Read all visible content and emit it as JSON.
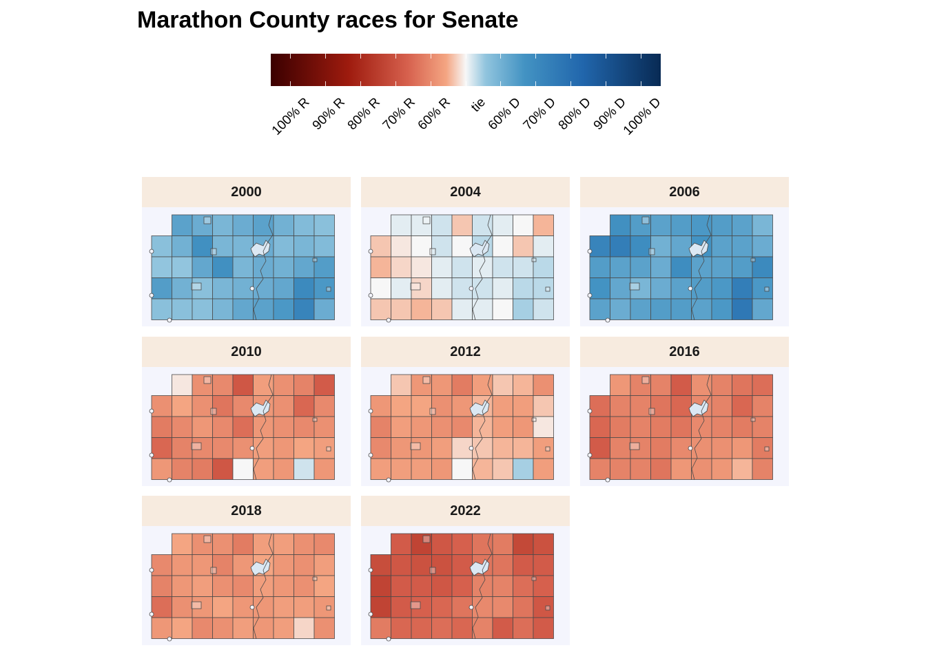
{
  "chart_data": {
    "type": "heatmap",
    "title": "Marathon County races for Senate",
    "legend": {
      "position": "top",
      "labels": [
        "100% R",
        "90% R",
        "80% R",
        "70% R",
        "60% R",
        "tie",
        "60% D",
        "70% D",
        "80% D",
        "90% D",
        "100% D"
      ],
      "colors": {
        "full_r": "#3b0000",
        "strong_r": "#9e1b0e",
        "mid_r": "#d6604d",
        "light_r": "#f4a582",
        "tie": "#f7f7f7",
        "light_d": "#92c5de",
        "mid_d": "#4393c3",
        "strong_d": "#2166ac",
        "full_d": "#082a54"
      }
    },
    "panels": [
      {
        "year": "2000",
        "grid": [
          [
            null,
            0.62,
            0.6,
            0.58,
            0.6,
            0.62,
            0.59,
            0.57,
            0.56
          ],
          [
            0.56,
            0.59,
            0.66,
            0.58,
            0.58,
            0.6,
            0.57,
            0.58,
            0.57
          ],
          [
            0.55,
            0.55,
            0.61,
            0.66,
            0.58,
            0.6,
            0.59,
            0.61,
            0.63
          ],
          [
            0.63,
            0.59,
            0.56,
            0.58,
            0.59,
            0.6,
            0.61,
            0.68,
            0.64
          ],
          [
            0.56,
            0.56,
            0.56,
            0.58,
            0.61,
            0.62,
            0.64,
            0.7,
            0.6
          ]
        ]
      },
      {
        "year": "2004",
        "grid": [
          [
            null,
            0.51,
            0.51,
            0.52,
            0.47,
            0.52,
            0.51,
            0.5,
            0.46
          ],
          [
            0.47,
            0.49,
            0.5,
            0.52,
            0.5,
            0.53,
            0.5,
            0.47,
            0.51
          ],
          [
            0.46,
            0.48,
            0.49,
            0.51,
            0.52,
            0.51,
            0.52,
            0.52,
            0.53
          ],
          [
            0.5,
            0.51,
            0.48,
            0.51,
            0.52,
            0.52,
            0.51,
            0.53,
            0.53
          ],
          [
            0.47,
            0.47,
            0.46,
            0.47,
            0.51,
            0.51,
            0.5,
            0.54,
            0.52
          ]
        ]
      },
      {
        "year": "2006",
        "grid": [
          [
            null,
            0.66,
            0.63,
            0.62,
            0.63,
            0.64,
            0.63,
            0.62,
            0.58
          ],
          [
            0.7,
            0.72,
            0.67,
            0.59,
            0.61,
            0.65,
            0.62,
            0.62,
            0.6
          ],
          [
            0.63,
            0.62,
            0.62,
            0.6,
            0.67,
            0.62,
            0.62,
            0.63,
            0.68
          ],
          [
            0.65,
            0.61,
            0.58,
            0.6,
            0.62,
            0.63,
            0.64,
            0.72,
            0.64
          ],
          [
            0.62,
            0.6,
            0.62,
            0.63,
            0.63,
            0.62,
            0.64,
            0.74,
            0.61
          ]
        ]
      },
      {
        "year": "2010",
        "grid": [
          [
            null,
            0.49,
            0.42,
            0.41,
            0.33,
            0.44,
            0.42,
            0.4,
            0.34
          ],
          [
            0.42,
            0.45,
            0.42,
            0.38,
            0.41,
            0.43,
            0.42,
            0.36,
            0.41
          ],
          [
            0.39,
            0.41,
            0.43,
            0.41,
            0.37,
            0.43,
            0.42,
            0.41,
            0.42
          ],
          [
            0.36,
            0.4,
            0.41,
            0.41,
            0.42,
            0.44,
            0.43,
            0.45,
            0.44
          ],
          [
            0.43,
            0.4,
            0.39,
            0.33,
            0.5,
            0.44,
            0.43,
            0.52,
            0.43
          ]
        ]
      },
      {
        "year": "2012",
        "grid": [
          [
            null,
            0.47,
            0.43,
            0.43,
            0.39,
            0.44,
            0.47,
            0.46,
            0.42
          ],
          [
            0.43,
            0.45,
            0.45,
            0.42,
            0.43,
            0.46,
            0.44,
            0.44,
            0.47
          ],
          [
            0.4,
            0.44,
            0.43,
            0.42,
            0.41,
            0.46,
            0.44,
            0.43,
            0.49
          ],
          [
            0.41,
            0.43,
            0.43,
            0.44,
            0.48,
            0.47,
            0.46,
            0.46,
            0.44
          ],
          [
            0.44,
            0.44,
            0.44,
            0.43,
            0.5,
            0.46,
            0.47,
            0.54,
            0.44
          ]
        ]
      },
      {
        "year": "2016",
        "grid": [
          [
            null,
            0.43,
            0.4,
            0.4,
            0.34,
            0.42,
            0.4,
            0.38,
            0.37
          ],
          [
            0.37,
            0.4,
            0.4,
            0.38,
            0.36,
            0.41,
            0.4,
            0.36,
            0.4
          ],
          [
            0.36,
            0.39,
            0.4,
            0.39,
            0.38,
            0.41,
            0.4,
            0.39,
            0.4
          ],
          [
            0.34,
            0.4,
            0.4,
            0.39,
            0.41,
            0.42,
            0.42,
            0.43,
            0.39
          ],
          [
            0.4,
            0.4,
            0.4,
            0.38,
            0.43,
            0.42,
            0.43,
            0.46,
            0.4
          ]
        ]
      },
      {
        "year": "2018",
        "grid": [
          [
            null,
            0.45,
            0.42,
            0.42,
            0.39,
            0.44,
            0.44,
            0.42,
            0.41
          ],
          [
            0.41,
            0.43,
            0.43,
            0.4,
            0.43,
            0.45,
            0.43,
            0.42,
            0.44
          ],
          [
            0.4,
            0.43,
            0.44,
            0.42,
            0.41,
            0.44,
            0.43,
            0.42,
            0.45
          ],
          [
            0.37,
            0.42,
            0.43,
            0.45,
            0.43,
            0.43,
            0.44,
            0.44,
            0.43
          ],
          [
            0.43,
            0.45,
            0.41,
            0.42,
            0.44,
            0.43,
            0.44,
            0.48,
            0.42
          ]
        ]
      },
      {
        "year": "2022",
        "grid": [
          [
            null,
            0.34,
            0.29,
            0.33,
            0.35,
            0.38,
            0.39,
            0.3,
            0.32
          ],
          [
            0.31,
            0.33,
            0.32,
            0.32,
            0.34,
            0.38,
            0.38,
            0.34,
            0.34
          ],
          [
            0.29,
            0.34,
            0.34,
            0.33,
            0.35,
            0.4,
            0.4,
            0.37,
            0.35
          ],
          [
            0.29,
            0.34,
            0.35,
            0.36,
            0.38,
            0.41,
            0.41,
            0.38,
            0.33
          ],
          [
            0.39,
            0.36,
            0.36,
            0.37,
            0.36,
            0.4,
            0.34,
            0.37,
            0.34
          ]
        ]
      }
    ]
  }
}
